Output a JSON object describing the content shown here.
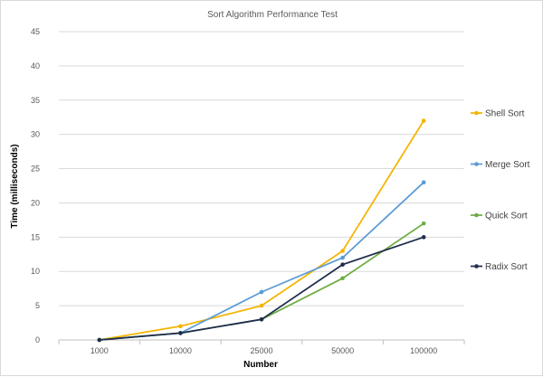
{
  "chart_data": {
    "type": "line",
    "title": "Sort Algorithm Performance Test",
    "xlabel": "Number",
    "ylabel": "Time (milliseconds)",
    "categories": [
      "1000",
      "10000",
      "25000",
      "50000",
      "100000"
    ],
    "ylim": [
      0,
      45
    ],
    "yticks": [
      0,
      5,
      10,
      15,
      20,
      25,
      30,
      35,
      40,
      45
    ],
    "grid": true,
    "legend": "right",
    "series": [
      {
        "name": "Shell Sort",
        "color": "#f4b400",
        "values": [
          0,
          2,
          5,
          13,
          32
        ]
      },
      {
        "name": "Merge Sort",
        "color": "#5b9bd5",
        "values": [
          0,
          1,
          7,
          12,
          23
        ]
      },
      {
        "name": "Quick Sort",
        "color": "#70ad47",
        "values": [
          0,
          1,
          3,
          9,
          17
        ]
      },
      {
        "name": "Radix Sort",
        "color": "#1f2d4d",
        "values": [
          0,
          1,
          3,
          11,
          15
        ]
      }
    ]
  }
}
